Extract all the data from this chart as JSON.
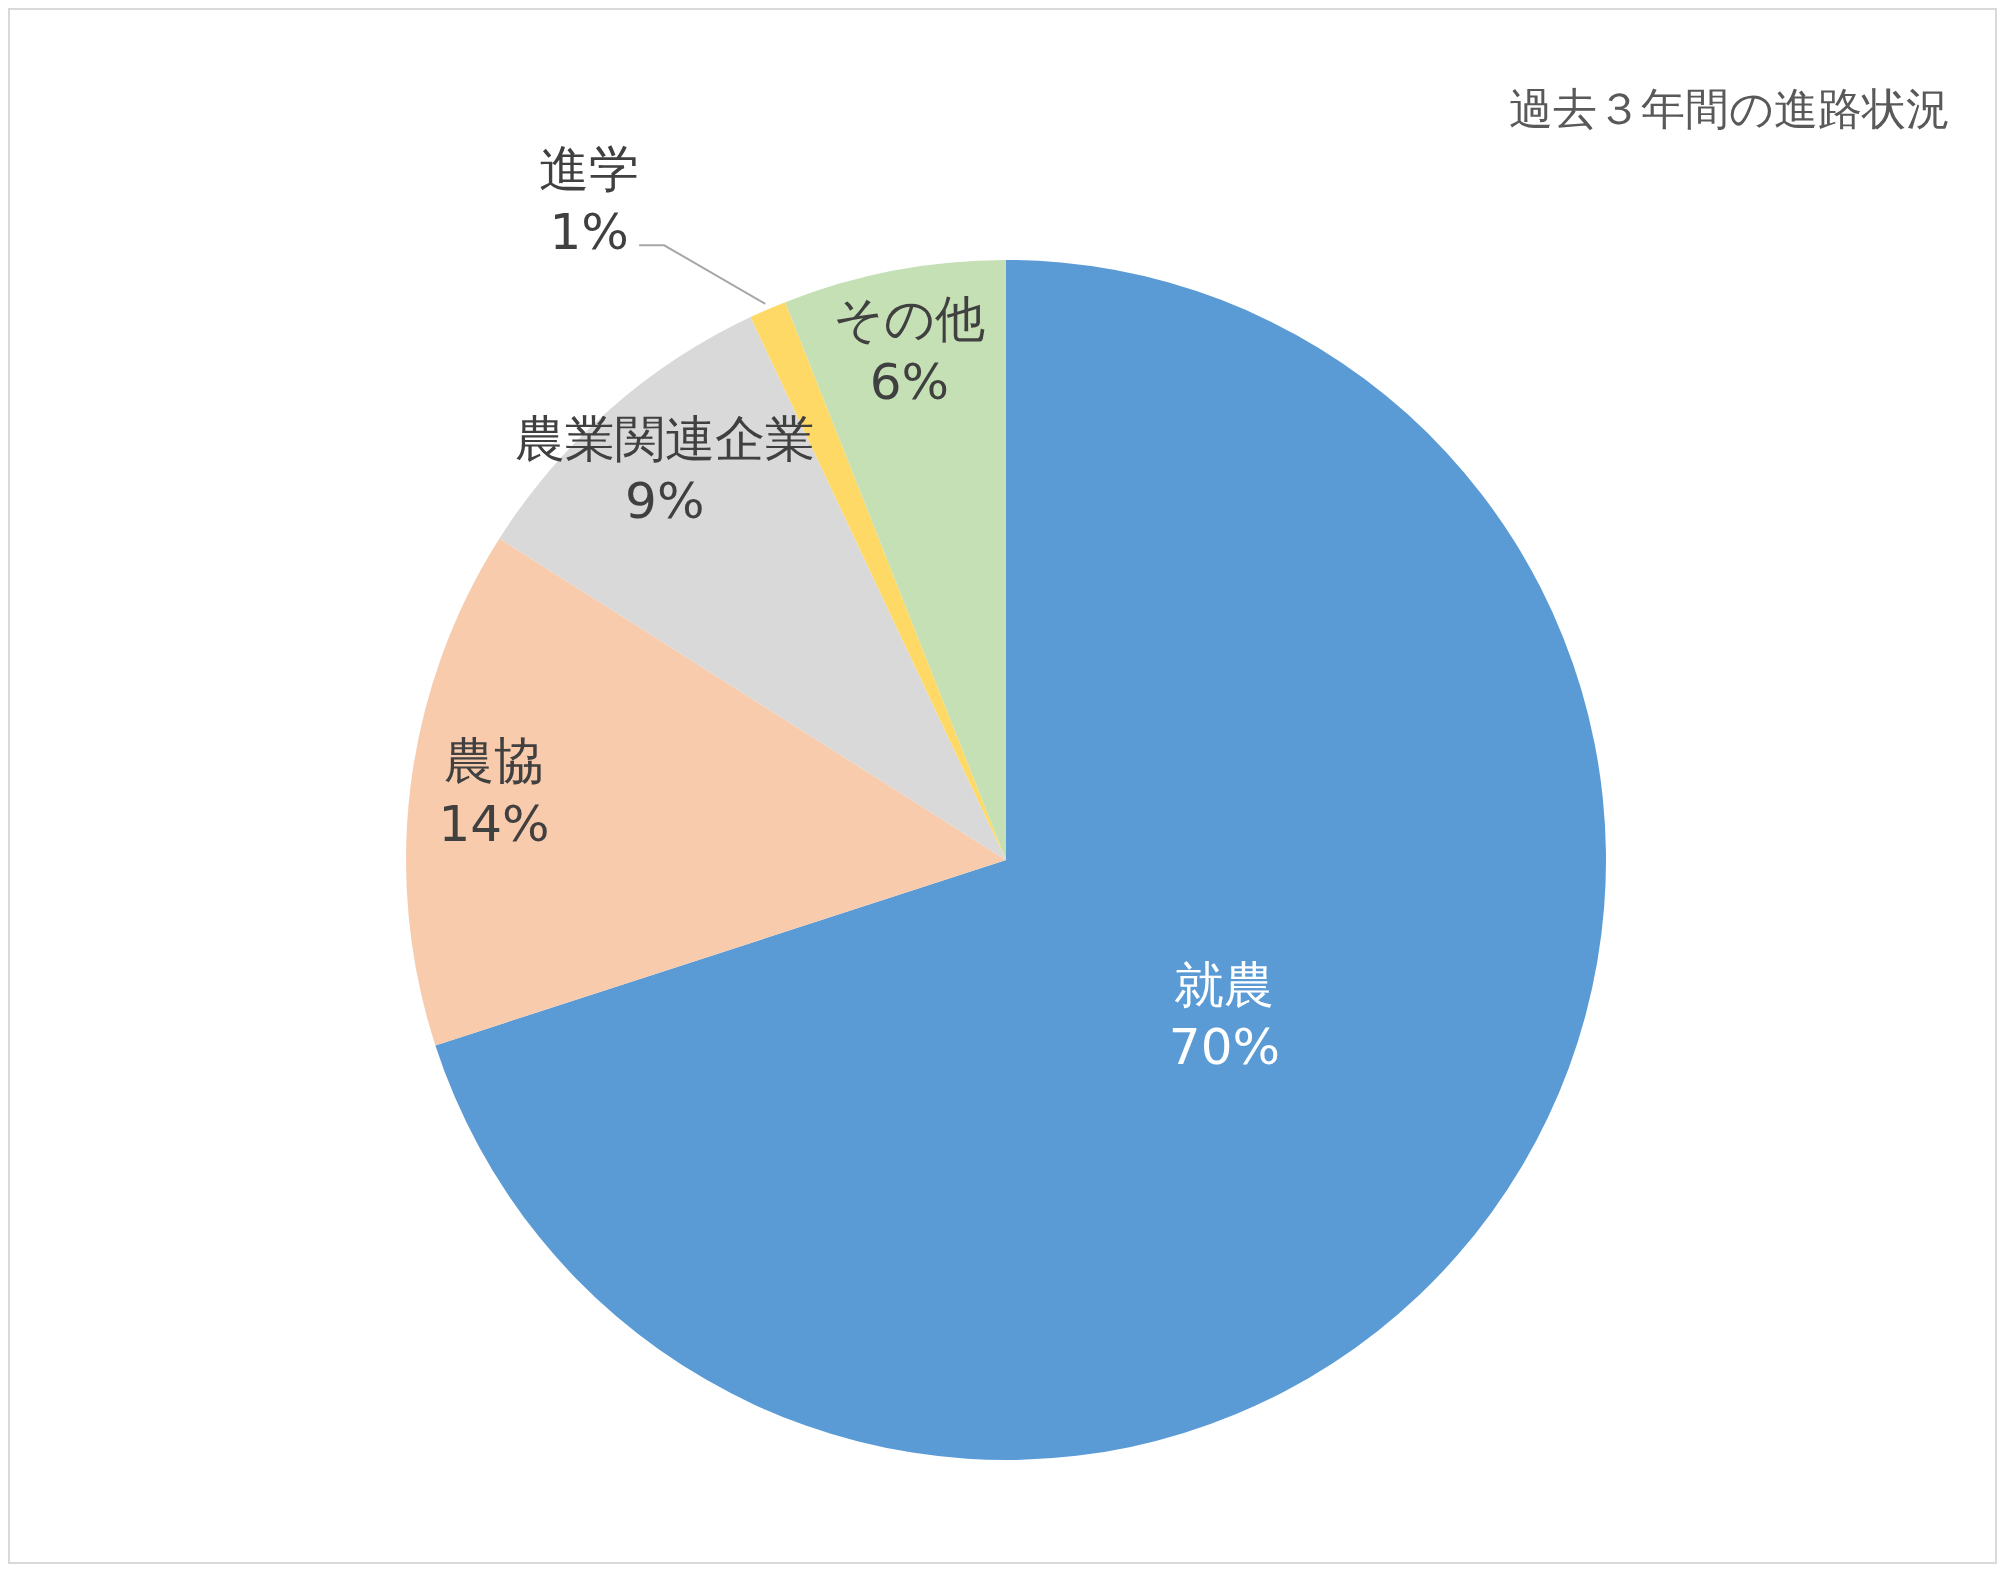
{
  "chart_data": {
    "type": "pie",
    "title": "過去３年間の進路状況",
    "categories": [
      "就農",
      "農協",
      "農業関連企業",
      "進学",
      "その他"
    ],
    "values": [
      70,
      14,
      9,
      1,
      6
    ],
    "value_labels": [
      "70%",
      "14%",
      "9%",
      "1%",
      "6%"
    ],
    "colors": [
      "#5b9bd5",
      "#f8cbad",
      "#d9d9d9",
      "#ffd966",
      "#c5e0b4"
    ]
  }
}
